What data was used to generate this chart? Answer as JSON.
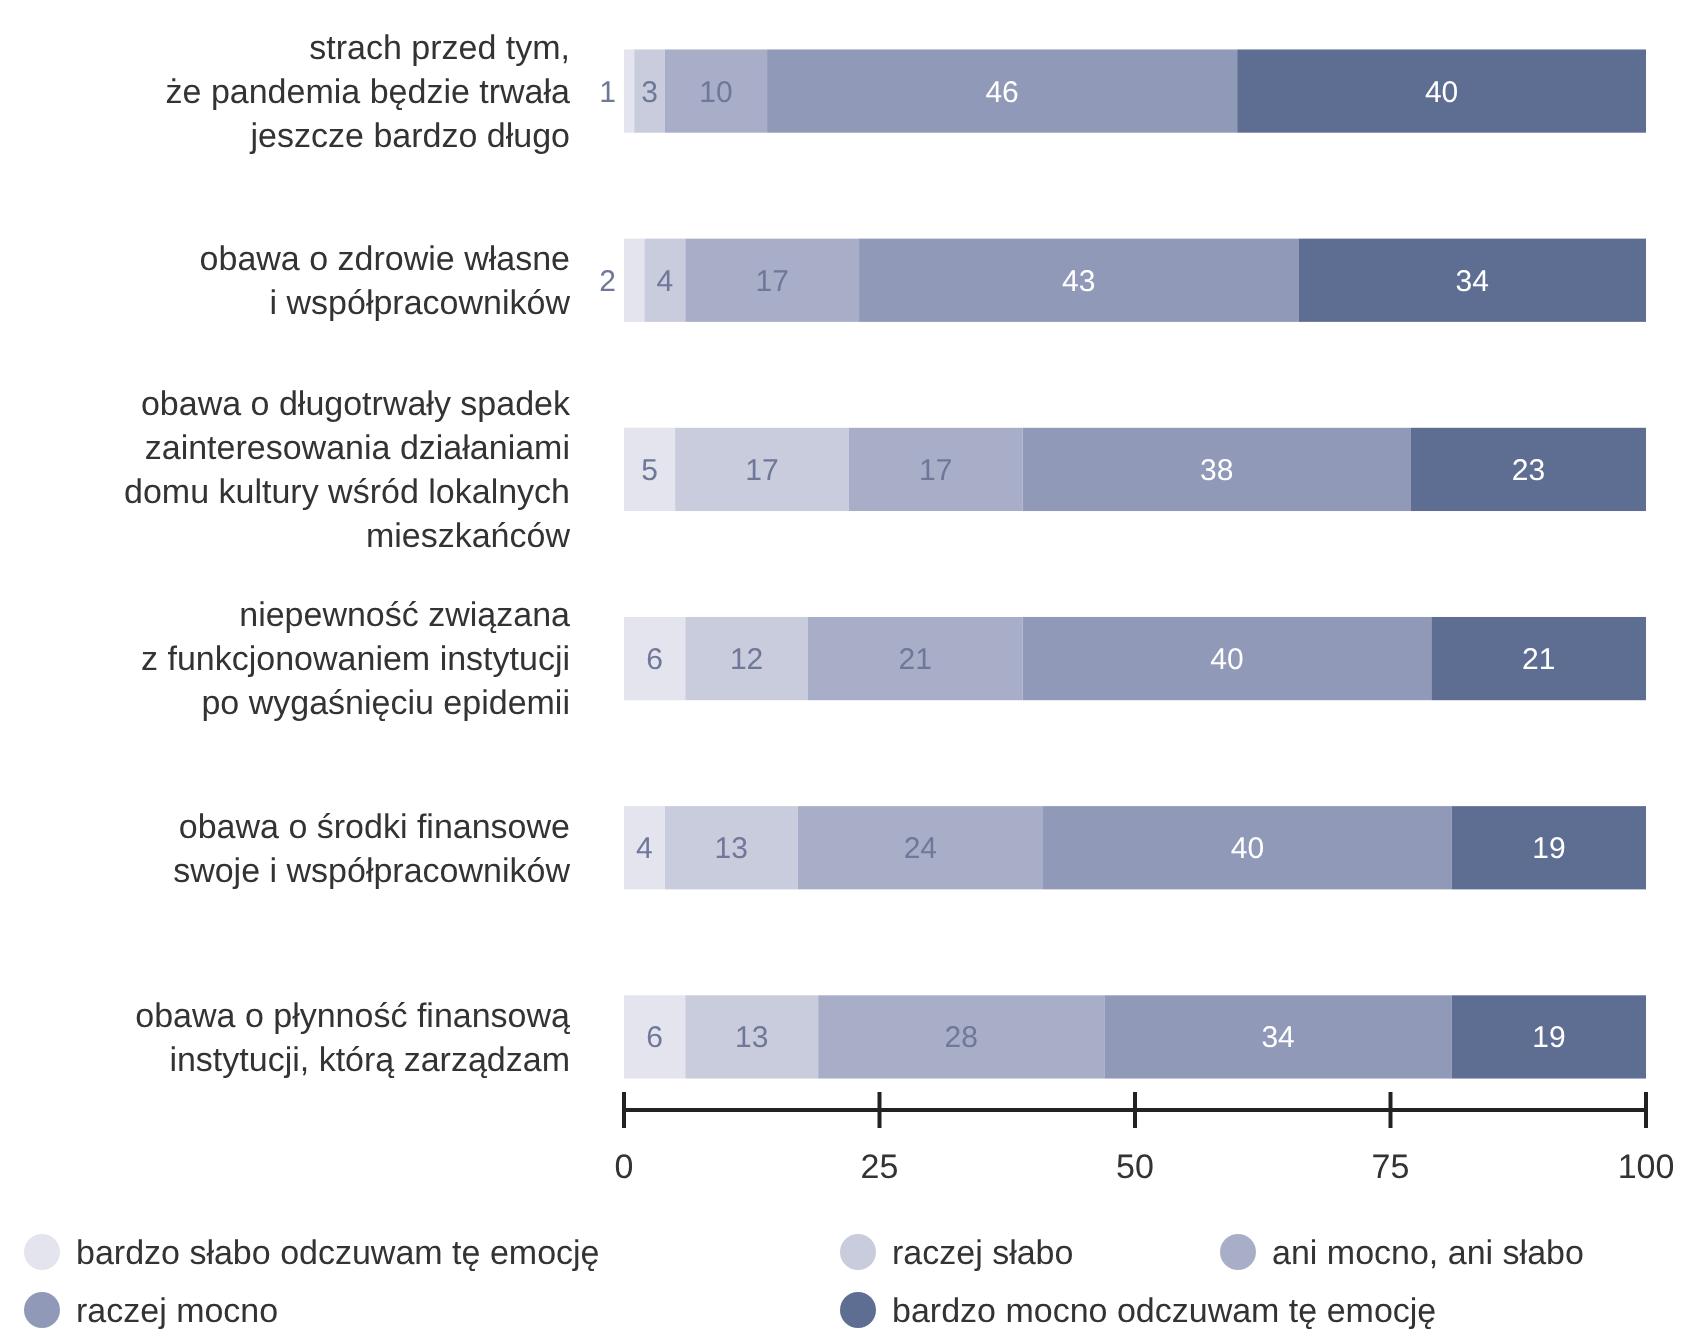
{
  "chart_data": {
    "type": "bar",
    "orientation": "horizontal",
    "stacked": true,
    "data_labels": true,
    "legend": "bottom",
    "categories": [
      "strach przed tym,\nże pandemia będzie trwała\njeszcze bardzo długo",
      "obawa o zdrowie własne\ni współpracowników",
      "obawa o długotrwały spadek\nzainteresowania działaniami\ndomu kultury wśród lokalnych\nmieszkańców",
      "niepewność związana\nz funkcjonowaniem instytucji\npo wygaśnięciu epidemii",
      "obawa o środki finansowe\nswoje i współpracowników",
      "obawa o płynność finansową\ninstytucji, którą zarządzam"
    ],
    "series": [
      {
        "name": "bardzo słabo odczuwam tę emocję",
        "color": "#e3e4ed",
        "values": [
          1,
          2,
          5,
          6,
          4,
          6
        ]
      },
      {
        "name": "raczej słabo",
        "color": "#c9ccdd",
        "values": [
          3,
          4,
          17,
          12,
          13,
          13
        ]
      },
      {
        "name": "ani mocno, ani słabo",
        "color": "#a9aec8",
        "values": [
          10,
          17,
          17,
          21,
          24,
          28
        ]
      },
      {
        "name": "raczej mocno",
        "color": "#9199b9",
        "values": [
          46,
          43,
          38,
          40,
          40,
          34
        ]
      },
      {
        "name": "bardzo mocno odczuwam tę emocję",
        "color": "#5e6d92",
        "values": [
          40,
          34,
          23,
          21,
          19,
          19
        ]
      }
    ],
    "xlim": [
      0,
      100
    ],
    "xticks": [
      0,
      25,
      50,
      75,
      100
    ]
  }
}
